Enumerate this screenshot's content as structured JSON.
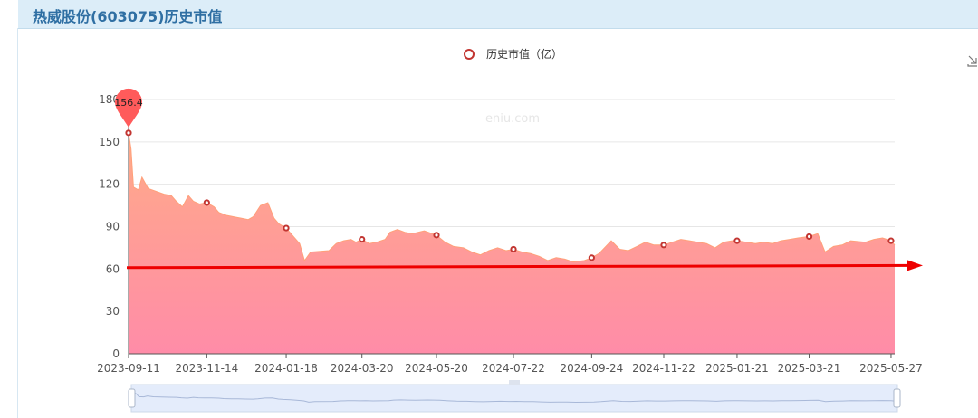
{
  "header": {
    "title": "热威股份(603075)历史市值"
  },
  "icons": {
    "download": "download-icon"
  },
  "colors": {
    "area_top": "#ffab88",
    "area_bottom": "#ff8ca8",
    "marker": "#c23531",
    "pin": "#ff5b5b",
    "arrow": "#ee0000",
    "slider_fill": "#e4ecfb"
  },
  "chart_data": {
    "type": "area",
    "legend": [
      "历史市值（亿）"
    ],
    "legend_position": "top-center",
    "watermark": "eniu.com",
    "ylim": [
      0,
      180
    ],
    "y_ticks": [
      "0",
      "30",
      "60",
      "90",
      "120",
      "150",
      "180"
    ],
    "grid": true,
    "x_tick_labels": [
      "2023-09-11",
      "2023-11-14",
      "2024-01-18",
      "2024-03-20",
      "2024-05-20",
      "2024-07-22",
      "2024-09-24",
      "2024-11-22",
      "2025-01-21",
      "2025-03-21",
      "2025-05-27"
    ],
    "series": [
      {
        "name": "历史市值（亿）",
        "x": [
          "2023-09-11",
          "2023-09-13",
          "2023-09-15",
          "2023-09-19",
          "2023-09-22",
          "2023-09-27",
          "2023-10-10",
          "2023-10-16",
          "2023-10-20",
          "2023-10-25",
          "2023-10-30",
          "2023-11-03",
          "2023-11-08",
          "2023-11-14",
          "2023-11-20",
          "2023-11-24",
          "2023-11-30",
          "2023-12-06",
          "2023-12-12",
          "2023-12-18",
          "2023-12-22",
          "2023-12-28",
          "2024-01-03",
          "2024-01-08",
          "2024-01-12",
          "2024-01-18",
          "2024-01-23",
          "2024-01-29",
          "2024-02-02",
          "2024-02-07",
          "2024-02-22",
          "2024-02-28",
          "2024-03-05",
          "2024-03-11",
          "2024-03-15",
          "2024-03-20",
          "2024-03-26",
          "2024-04-01",
          "2024-04-08",
          "2024-04-12",
          "2024-04-18",
          "2024-04-24",
          "2024-04-30",
          "2024-05-10",
          "2024-05-20",
          "2024-05-27",
          "2024-06-03",
          "2024-06-11",
          "2024-06-18",
          "2024-06-25",
          "2024-07-02",
          "2024-07-09",
          "2024-07-16",
          "2024-07-22",
          "2024-07-29",
          "2024-08-05",
          "2024-08-12",
          "2024-08-19",
          "2024-08-26",
          "2024-09-02",
          "2024-09-09",
          "2024-09-18",
          "2024-09-24",
          "2024-09-30",
          "2024-10-10",
          "2024-10-17",
          "2024-10-24",
          "2024-10-31",
          "2024-11-07",
          "2024-11-14",
          "2024-11-22",
          "2024-11-29",
          "2024-12-06",
          "2024-12-13",
          "2024-12-20",
          "2024-12-27",
          "2025-01-03",
          "2025-01-10",
          "2025-01-17",
          "2025-01-21",
          "2025-02-05",
          "2025-02-12",
          "2025-02-19",
          "2025-02-26",
          "2025-03-05",
          "2025-03-12",
          "2025-03-21",
          "2025-03-28",
          "2025-04-03",
          "2025-04-10",
          "2025-04-17",
          "2025-04-24",
          "2025-05-06",
          "2025-05-13",
          "2025-05-20",
          "2025-05-27",
          "2025-05-30"
        ],
        "values": [
          156.4,
          145,
          118,
          116,
          125,
          117,
          113,
          112,
          108,
          104,
          112,
          108,
          106,
          107,
          104,
          100,
          98,
          97,
          96,
          95,
          97,
          105,
          107,
          96,
          92,
          89,
          84,
          78,
          66,
          72,
          73,
          78,
          80,
          81,
          79,
          81,
          78,
          79,
          81,
          86,
          88,
          86,
          85,
          87,
          84,
          79,
          76,
          75,
          72,
          70,
          73,
          75,
          73,
          74,
          72,
          71,
          69,
          66,
          68,
          67,
          65,
          66,
          68,
          71,
          80,
          74,
          73,
          76,
          79,
          77,
          77,
          79,
          81,
          80,
          79,
          78,
          75,
          79,
          80,
          80,
          78,
          79,
          78,
          80,
          81,
          82,
          83,
          85,
          72,
          76,
          77,
          80,
          79,
          81,
          82,
          80,
          77
        ]
      }
    ],
    "markers": [
      {
        "x": "2023-09-11",
        "y": 156.4
      },
      {
        "x": "2023-11-14",
        "y": 107
      },
      {
        "x": "2024-01-18",
        "y": 89
      },
      {
        "x": "2024-03-20",
        "y": 81
      },
      {
        "x": "2024-05-20",
        "y": 84
      },
      {
        "x": "2024-07-22",
        "y": 74
      },
      {
        "x": "2024-09-24",
        "y": 68
      },
      {
        "x": "2024-11-22",
        "y": 77
      },
      {
        "x": "2025-01-21",
        "y": 80
      },
      {
        "x": "2025-03-21",
        "y": 83
      },
      {
        "x": "2025-05-27",
        "y": 80
      }
    ],
    "max_pin": {
      "x": "2023-09-11",
      "y": 156.4,
      "label": "156.4"
    },
    "annotation_arrow": {
      "from": {
        "x": "2023-09-11",
        "y": 61
      },
      "to_end_y": 62.5
    },
    "x_range": [
      "2023-09-11",
      "2025-05-30"
    ]
  }
}
